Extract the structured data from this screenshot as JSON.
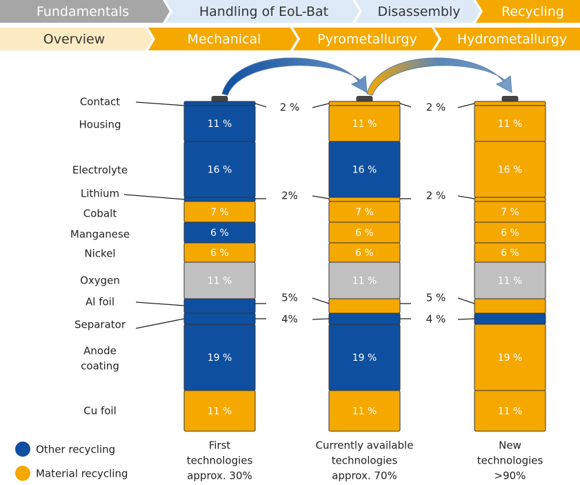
{
  "nav": {
    "row1": [
      {
        "label": "Fundamentals",
        "color": "#a6a6a6",
        "text_color": "#ffffff"
      },
      {
        "label": "Handling of EoL-Bat",
        "color": "#dde9f7",
        "text_color": "#333333"
      },
      {
        "label": "Disassembly",
        "color": "#dde9f7",
        "text_color": "#333333"
      },
      {
        "label": "Recycling",
        "color": "#f5a800",
        "text_color": "#ffffff"
      }
    ],
    "row2": [
      {
        "label": "Overview",
        "color": "#fdebc4",
        "text_color": "#333333"
      },
      {
        "label": "Mechanical",
        "color": "#f5a800",
        "text_color": "#ffffff"
      },
      {
        "label": "Pyrometallurgy",
        "color": "#f5a800",
        "text_color": "#ffffff"
      },
      {
        "label": "Hydrometallurgy",
        "color": "#f5a800",
        "text_color": "#ffffff"
      }
    ]
  },
  "components": [
    {
      "lines": [
        "Contact"
      ]
    },
    {
      "lines": [
        "Housing"
      ]
    },
    {
      "lines": [
        "Electrolyte"
      ]
    },
    {
      "lines": [
        "Lithium"
      ]
    },
    {
      "lines": [
        "Cobalt"
      ]
    },
    {
      "lines": [
        "Manganese"
      ]
    },
    {
      "lines": [
        "Nickel"
      ]
    },
    {
      "lines": [
        "Oxygen"
      ]
    },
    {
      "lines": [
        "Al foil"
      ]
    },
    {
      "lines": [
        "Separator"
      ]
    },
    {
      "lines": [
        "Anode",
        "coating"
      ]
    },
    {
      "lines": [
        "Cu foil"
      ]
    }
  ],
  "columns": [
    {
      "segments": [
        {
          "color": "#0f4fa0"
        },
        {
          "color": "#0f4fa0",
          "label": "11 %"
        },
        {
          "color": "#0f4fa0",
          "label": "16 %"
        },
        {
          "color": "#0f4fa0"
        },
        {
          "color": "#f5a800",
          "label": "7 %"
        },
        {
          "color": "#0f4fa0",
          "label": "6 %"
        },
        {
          "color": "#f5a800",
          "label": "6 %"
        },
        {
          "color": "#c0c0c0",
          "label": "11 %"
        },
        {
          "color": "#0f4fa0"
        },
        {
          "color": "#0f4fa0"
        },
        {
          "color": "#0f4fa0",
          "label": "19 %"
        },
        {
          "color": "#f5a800",
          "label": "11 %"
        }
      ],
      "caption": [
        "First",
        "technologies",
        "approx. 30%"
      ]
    },
    {
      "segments": [
        {
          "color": "#f5a800"
        },
        {
          "color": "#f5a800",
          "label": "11 %"
        },
        {
          "color": "#0f4fa0",
          "label": "16 %"
        },
        {
          "color": "#f5a800"
        },
        {
          "color": "#f5a800",
          "label": "7 %"
        },
        {
          "color": "#f5a800",
          "label": "6 %"
        },
        {
          "color": "#f5a800",
          "label": "6 %"
        },
        {
          "color": "#c0c0c0",
          "label": "11 %"
        },
        {
          "color": "#f5a800"
        },
        {
          "color": "#0f4fa0"
        },
        {
          "color": "#0f4fa0",
          "label": "19 %"
        },
        {
          "color": "#f5a800",
          "label": "11 %"
        }
      ],
      "caption": [
        "Currently available",
        "technologies",
        "approx. 70%"
      ]
    },
    {
      "segments": [
        {
          "color": "#f5a800"
        },
        {
          "color": "#f5a800",
          "label": "11 %"
        },
        {
          "color": "#f5a800",
          "label": "16 %"
        },
        {
          "color": "#f5a800"
        },
        {
          "color": "#f5a800",
          "label": "7 %"
        },
        {
          "color": "#f5a800",
          "label": "6 %"
        },
        {
          "color": "#f5a800",
          "label": "6 %"
        },
        {
          "color": "#c0c0c0",
          "label": "11 %"
        },
        {
          "color": "#f5a800"
        },
        {
          "color": "#0f4fa0"
        },
        {
          "color": "#f5a800",
          "label": "19 %"
        },
        {
          "color": "#f5a800",
          "label": "11 %"
        }
      ],
      "caption": [
        "New",
        "technologies",
        ">90%"
      ]
    }
  ],
  "annotations": [
    {
      "labels": [
        "2 %",
        "2%",
        "5%",
        "4%"
      ]
    },
    {
      "labels": [
        "2 %",
        "2 %",
        "5 %",
        "4 %"
      ]
    }
  ],
  "legend": [
    {
      "label": "Other recycling",
      "color": "#0f4fa0"
    },
    {
      "label": "Material recycling",
      "color": "#f5a800"
    }
  ]
}
